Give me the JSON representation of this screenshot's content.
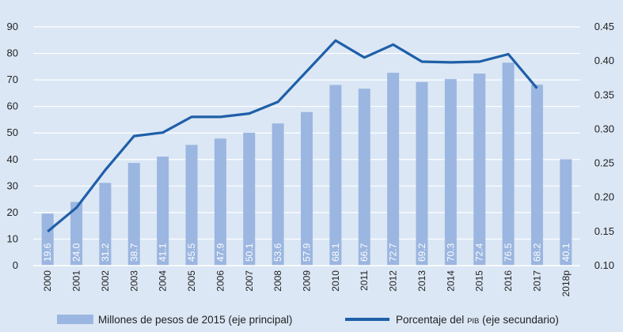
{
  "chart_data": {
    "type": "bar+line",
    "categories": [
      "2000",
      "2001",
      "2002",
      "2003",
      "2004",
      "2005",
      "2006",
      "2007",
      "2008",
      "2009",
      "2010",
      "2011",
      "2012",
      "2013",
      "2014",
      "2015",
      "2016",
      "2017",
      "2018p"
    ],
    "bar_series": {
      "name": "Millones de pesos de 2015 (eje principal)",
      "axis": "left",
      "values": [
        19.6,
        24.0,
        31.2,
        38.7,
        41.1,
        45.5,
        47.9,
        50.1,
        53.6,
        57.9,
        68.1,
        66.7,
        72.7,
        69.2,
        70.3,
        72.4,
        76.5,
        68.2,
        40.1
      ],
      "labels": [
        "19.6",
        "24.0",
        "31.2",
        "38.7",
        "41.1",
        "45.5",
        "47.9",
        "50.1",
        "53.6",
        "57.9",
        "68.1",
        "66.7",
        "72.7",
        "69.2",
        "70.3",
        "72.4",
        "76.5",
        "68.2",
        "40.1"
      ],
      "color": "#9bb6e0"
    },
    "line_series": {
      "name_prefix": "Porcentaje del ",
      "name_smallcaps": "PIB",
      "name_suffix": " (eje secundario)",
      "axis": "right",
      "values": [
        0.15,
        0.185,
        0.24,
        0.29,
        0.295,
        0.318,
        0.318,
        0.323,
        0.34,
        0.385,
        0.43,
        0.405,
        0.424,
        0.399,
        0.398,
        0.399,
        0.41,
        0.36
      ],
      "color": "#1f5fa8"
    },
    "y_left": {
      "min": 0,
      "max": 90,
      "ticks": [
        "0",
        "10",
        "20",
        "30",
        "40",
        "50",
        "60",
        "70",
        "80",
        "90"
      ]
    },
    "y_right": {
      "min": 0.1,
      "max": 0.45,
      "ticks": [
        "0.10",
        "0.15",
        "0.20",
        "0.25",
        "0.30",
        "0.35",
        "0.40",
        "0.45"
      ]
    },
    "grid": true,
    "legend_position": "bottom"
  },
  "colors": {
    "background": "#dbe7f5",
    "grid": "#ffffff",
    "bar": "#9bb6e0",
    "line": "#1f5fa8"
  }
}
